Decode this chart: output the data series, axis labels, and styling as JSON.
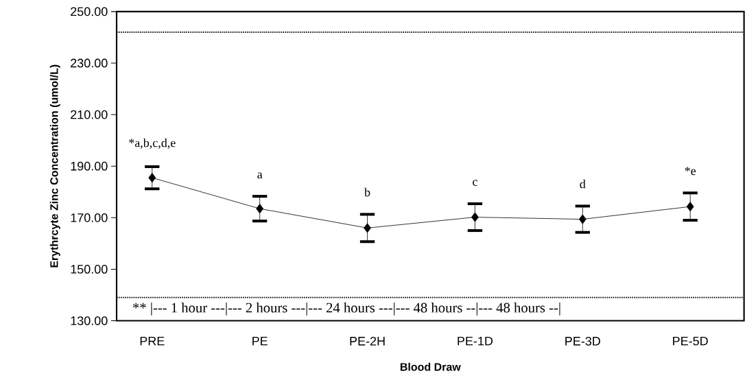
{
  "chart_data": {
    "type": "line",
    "xlabel": "Blood Draw",
    "ylabel": "Erythrcyte Zinc Concentration (umol/L)",
    "categories": [
      "PRE",
      "PE",
      "PE-2H",
      "PE-1D",
      "PE-3D",
      "PE-5D"
    ],
    "values": [
      185.5,
      173.5,
      166.0,
      170.2,
      169.4,
      174.3
    ],
    "errors": [
      4.3,
      4.8,
      5.3,
      5.2,
      5.1,
      5.3
    ],
    "color": "#000000",
    "marker": "diamond",
    "line_style": "solid",
    "ylim": [
      130,
      250
    ],
    "yticks": [
      {
        "value": 130,
        "label": "130.00"
      },
      {
        "value": 150,
        "label": "150.00"
      },
      {
        "value": 170,
        "label": "170.00"
      },
      {
        "value": 190,
        "label": "190.00"
      },
      {
        "value": 210,
        "label": "210.00"
      },
      {
        "value": 230,
        "label": "230.00"
      },
      {
        "value": 250,
        "label": "250.00"
      }
    ],
    "ref_lines": [
      {
        "axis": "y",
        "value": 242,
        "line_style": "dotted"
      },
      {
        "axis": "y",
        "value": 139,
        "line_style": "dotted"
      }
    ],
    "annotations": [
      "*a,b,c,d,e",
      "a",
      "b",
      "c",
      "d",
      "*e",
      "** |--- 1 hour ---|--- 2 hours ---|--- 24 hours ---|--- 48 hours --|--- 48 hours --|"
    ]
  }
}
